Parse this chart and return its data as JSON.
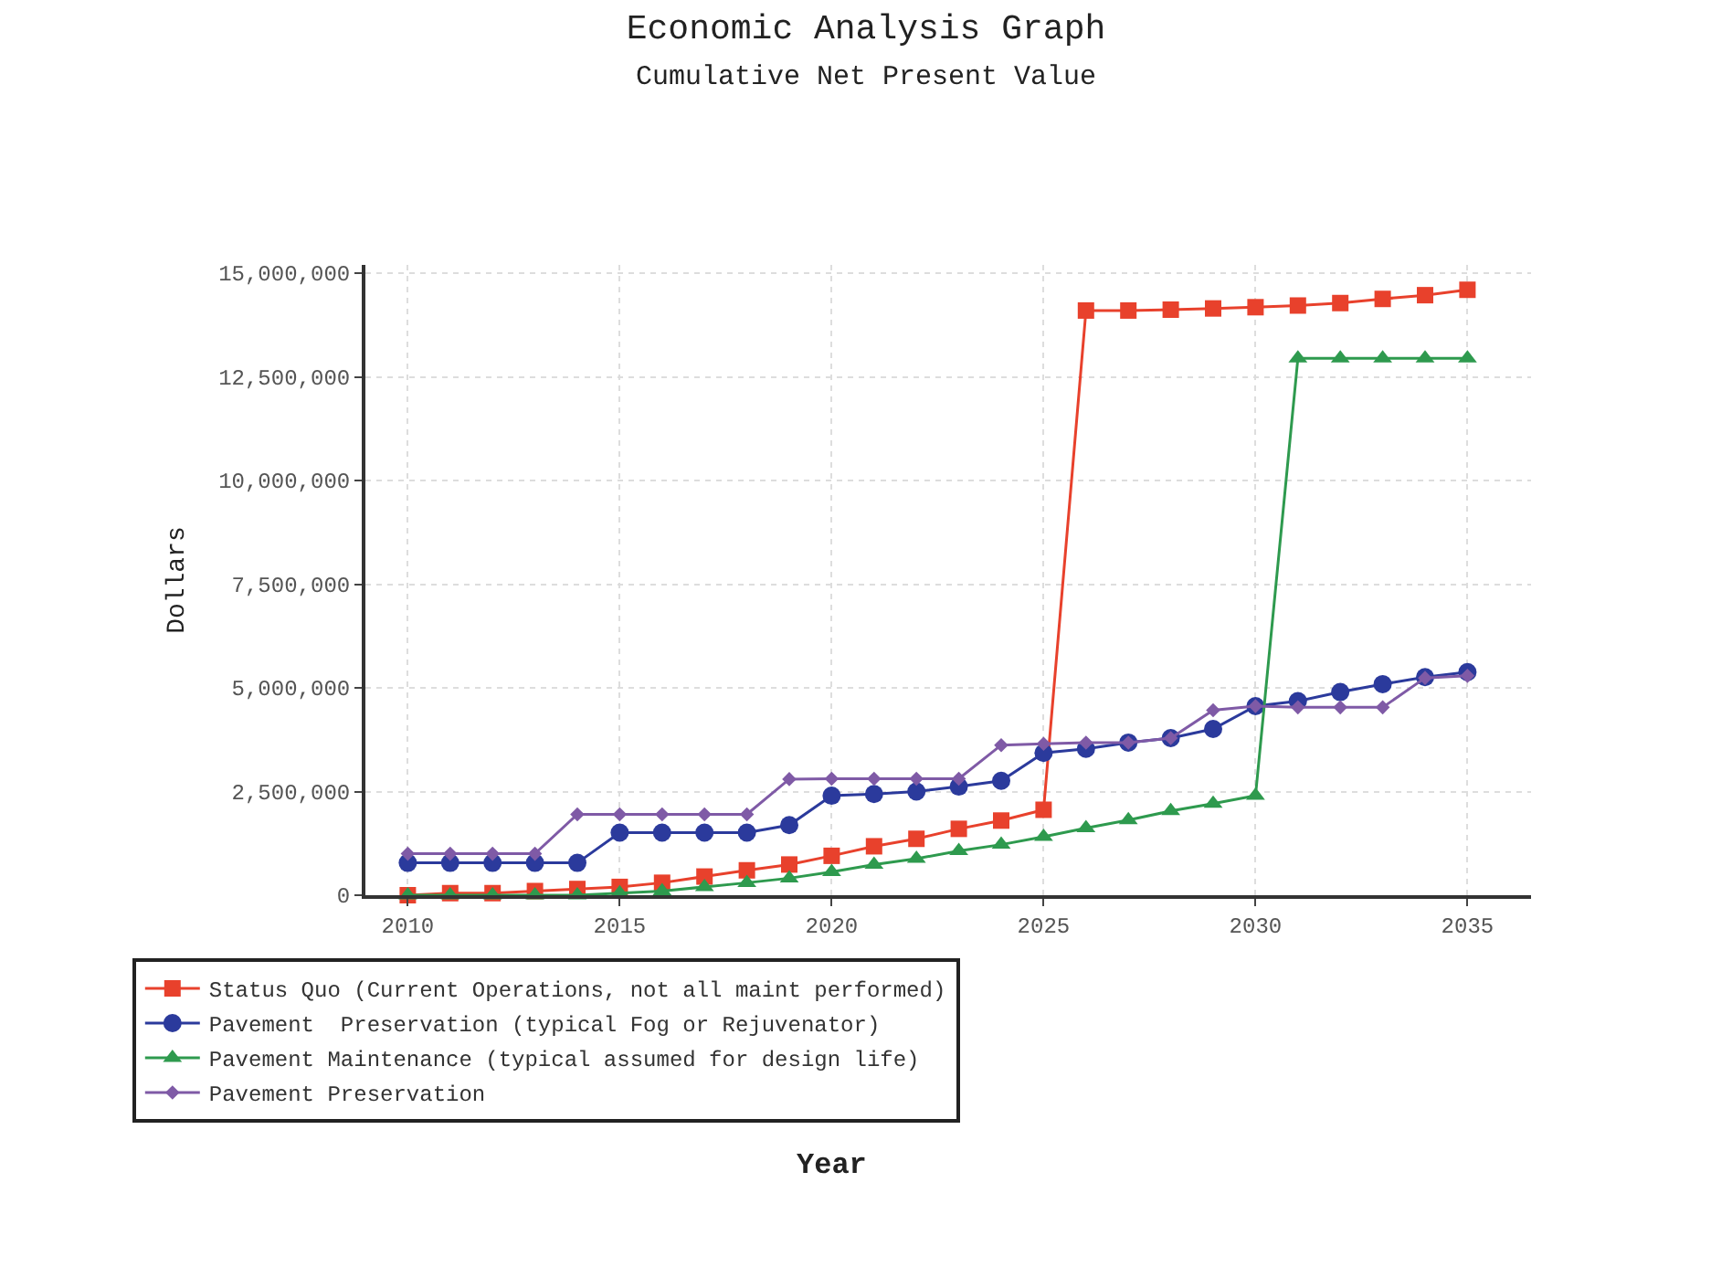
{
  "chart_data": {
    "type": "line",
    "title": "Economic Analysis Graph",
    "subtitle": "Cumulative Net Present Value",
    "annotations": [
      "Year"
    ],
    "ylabel": "Dollars",
    "x": [
      2010,
      2011,
      2012,
      2013,
      2014,
      2015,
      2016,
      2017,
      2018,
      2019,
      2020,
      2021,
      2022,
      2023,
      2024,
      2025,
      2026,
      2027,
      2028,
      2029,
      2030,
      2031,
      2032,
      2033,
      2034,
      2035
    ],
    "series": [
      {
        "name": "Status Quo (Current Operations, not all maint performed)",
        "color": "#e8412c",
        "marker": "square",
        "values": [
          0.0,
          50000,
          50000,
          100000,
          150000,
          200000,
          300000,
          450000,
          600000,
          740000,
          950000,
          1180000,
          1360000,
          1600000,
          1800000,
          2060000,
          14100000,
          14100000,
          14120000,
          14150000,
          14180000,
          14220000,
          14280000,
          14380000,
          14470000,
          14600000
        ]
      },
      {
        "name": "Pavement  Preservation (typical Fog or Rejuvenator)",
        "color": "#2b3a9c",
        "marker": "circle",
        "values": [
          780000,
          780000,
          780000,
          780000,
          780000,
          1510000,
          1510000,
          1510000,
          1510000,
          1690000,
          2400000,
          2440000,
          2500000,
          2620000,
          2760000,
          3430000,
          3530000,
          3680000,
          3790000,
          4010000,
          4560000,
          4680000,
          4900000,
          5090000,
          5260000,
          5380000
        ]
      },
      {
        "name": "Pavement Maintenance (typical assumed for design life)",
        "color": "#2e9a4e",
        "marker": "triangle",
        "values": [
          0,
          0,
          0,
          0,
          0,
          50000,
          100000,
          200000,
          300000,
          410000,
          560000,
          740000,
          880000,
          1070000,
          1220000,
          1410000,
          1620000,
          1810000,
          2030000,
          2210000,
          2400000,
          12950000,
          12950000,
          12950000,
          12950000,
          12950000
        ]
      },
      {
        "name": "Pavement Preservation",
        "color": "#7f5aa6",
        "marker": "diamond",
        "values": [
          1000000,
          1000000,
          1000000,
          1000000,
          1950000,
          1950000,
          1950000,
          1950000,
          1950000,
          2800000,
          2810000,
          2810000,
          2810000,
          2810000,
          3620000,
          3650000,
          3680000,
          3680000,
          3790000,
          4460000,
          4560000,
          4530000,
          4530000,
          4530000,
          5240000,
          5290000
        ]
      }
    ],
    "xlim": [
      2009,
      2036.5
    ],
    "xticks": [
      2010,
      2015,
      2020,
      2025,
      2030,
      2035
    ],
    "ylim": [
      0,
      15200000
    ],
    "yticks": [
      {
        "value": 0,
        "label": "0"
      },
      {
        "value": 2500000,
        "label": "2,500,000"
      },
      {
        "value": 5000000,
        "label": "5,000,000"
      },
      {
        "value": 7500000,
        "label": "7,500,000"
      },
      {
        "value": 10000000,
        "label": "10,000,000"
      },
      {
        "value": 12500000,
        "label": "12,500,000"
      },
      {
        "value": 15000000,
        "label": "15,000,000"
      }
    ],
    "grid": true,
    "legend": "bottom",
    "line_style": "solid"
  }
}
